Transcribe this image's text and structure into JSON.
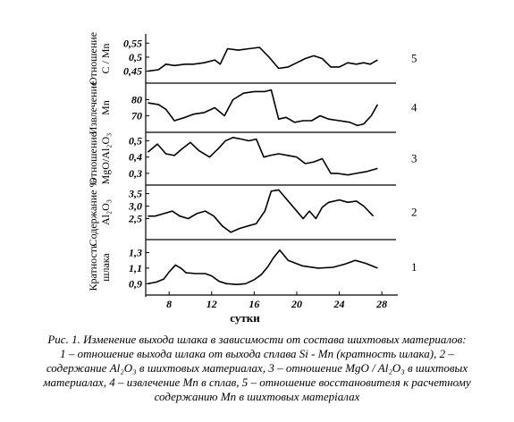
{
  "chart_data": {
    "type": "line",
    "x_axis": {
      "label": "сутки",
      "range": [
        5.8,
        29.5
      ],
      "ticks": [
        8,
        12,
        16,
        20,
        24,
        28
      ],
      "tick_labels": [
        "8",
        "12",
        "16",
        "20",
        "24",
        "28"
      ]
    },
    "panels": [
      {
        "number": "5",
        "ylabel_lines": [
          "Отношение",
          "C / Mn"
        ],
        "ylim": [
          0.42,
          0.57
        ],
        "ticks": [
          0.45,
          0.5,
          0.55
        ],
        "tick_labels": [
          "0,45",
          "0,5",
          "0,55"
        ],
        "x": [
          6,
          7,
          7.7,
          8.5,
          9.5,
          10.3,
          11.3,
          12.3,
          12.8,
          13.5,
          14.5,
          15.5,
          16.5,
          17.4,
          18.3,
          19.2,
          20,
          20.8,
          21.6,
          22.4,
          23.2,
          24,
          24.8,
          25.6,
          26.3,
          26.9,
          27.6
        ],
        "y": [
          0.45,
          0.455,
          0.475,
          0.47,
          0.475,
          0.475,
          0.48,
          0.49,
          0.475,
          0.53,
          0.525,
          0.53,
          0.535,
          0.5,
          0.46,
          0.465,
          0.48,
          0.495,
          0.505,
          0.495,
          0.465,
          0.465,
          0.48,
          0.475,
          0.48,
          0.475,
          0.49
        ]
      },
      {
        "number": "4",
        "ylabel_lines": [
          "Извлечение",
          "Mn"
        ],
        "ylim": [
          62,
          88
        ],
        "ticks": [
          70,
          80
        ],
        "tick_labels": [
          "70",
          "80"
        ],
        "x": [
          6,
          7,
          7.7,
          8.5,
          9.5,
          10.3,
          11.3,
          12.3,
          13.2,
          14,
          15,
          16,
          17,
          17.6,
          18.3,
          19,
          19.8,
          20.6,
          21.4,
          22.2,
          23,
          24,
          25,
          25.7,
          26.3,
          27,
          27.6
        ],
        "y": [
          78,
          77,
          74,
          67,
          69,
          71,
          72,
          75,
          70,
          80,
          84,
          85,
          85,
          86,
          68,
          69,
          66,
          67,
          67,
          70,
          68,
          67,
          66,
          64,
          65,
          70,
          77
        ]
      },
      {
        "number": "3",
        "ylabel_lines": [
          "Отношение",
          "MgO/Al₂O₃"
        ],
        "ylim": [
          0.25,
          0.53
        ],
        "ticks": [
          0.3,
          0.4,
          0.5
        ],
        "tick_labels": [
          "0,3",
          "0,4",
          "0,5"
        ],
        "x": [
          6,
          6.9,
          7.7,
          8.5,
          9.2,
          10,
          10.8,
          11.8,
          12.6,
          13.3,
          14,
          14.8,
          15.5,
          16.2,
          16.9,
          17.5,
          18.3,
          19.2,
          20,
          20.8,
          21.6,
          22.4,
          23.2,
          23.8,
          24.8,
          25.6,
          26.5,
          27.6
        ],
        "y": [
          0.43,
          0.48,
          0.42,
          0.41,
          0.45,
          0.49,
          0.44,
          0.4,
          0.45,
          0.5,
          0.52,
          0.51,
          0.5,
          0.51,
          0.4,
          0.41,
          0.42,
          0.41,
          0.4,
          0.36,
          0.37,
          0.39,
          0.3,
          0.3,
          0.29,
          0.3,
          0.31,
          0.33
        ]
      },
      {
        "number": "2",
        "ylabel_lines": [
          "Содержание %",
          "Al₂O₃"
        ],
        "ylim": [
          1.8,
          3.7
        ],
        "ticks": [
          2.5,
          3.0,
          3.5
        ],
        "tick_labels": [
          "2,5",
          "3,0",
          "3,5"
        ],
        "x": [
          6,
          6.7,
          7.5,
          8.3,
          9,
          9.8,
          10.6,
          11.4,
          12.2,
          13,
          13.8,
          14.6,
          15.4,
          16.2,
          17,
          17.6,
          18.3,
          19,
          19.8,
          20.6,
          21.2,
          21.8,
          22.4,
          23,
          24,
          24.8,
          25.6,
          26.3,
          27.2
        ],
        "y": [
          2.6,
          2.6,
          2.7,
          2.8,
          2.6,
          2.5,
          2.7,
          2.8,
          2.6,
          2.2,
          1.95,
          2.1,
          2.2,
          2.3,
          2.8,
          3.6,
          3.65,
          3.3,
          2.9,
          2.5,
          2.8,
          2.5,
          2.95,
          3.15,
          3.25,
          3.15,
          3.2,
          3.0,
          2.6
        ]
      },
      {
        "number": "1",
        "ylabel_lines": [
          "Кратность",
          "шлака"
        ],
        "ylim": [
          0.8,
          1.42
        ],
        "ticks": [
          0.9,
          1.1,
          1.3
        ],
        "tick_labels": [
          "0,9",
          "1,1",
          "1,3"
        ],
        "x": [
          6,
          6.8,
          7.5,
          8,
          8.6,
          9.1,
          9.6,
          10.5,
          11.4,
          12,
          12.7,
          13.4,
          14.4,
          15.2,
          16,
          16.7,
          17.3,
          17.8,
          18.4,
          19.2,
          20.5,
          22,
          23.4,
          24.5,
          25.5,
          26.5,
          27.6
        ],
        "y": [
          0.9,
          0.92,
          0.96,
          1.05,
          1.14,
          1.1,
          1.04,
          1.03,
          1.03,
          1.0,
          0.93,
          0.9,
          0.89,
          0.9,
          0.95,
          1.02,
          1.12,
          1.23,
          1.33,
          1.2,
          1.13,
          1.1,
          1.11,
          1.15,
          1.2,
          1.16,
          1.1
        ]
      }
    ]
  },
  "caption": {
    "line1": "Рис. 1. Изменение выхода шлака в зависимости от состава шихтовых материалов:",
    "line2": "1 – отношение выхода шлака от выхода сплава Si - Mn (кратность шлака), 2 –",
    "line3": "содержание Al₂O₃ в шихтовых материалах, 3 – отношение MgO / Al₂O₃ в шихтовых",
    "line4": "материалах,  4 – извлечение Mn в сплав, 5 – отношение восстановителя к расчетному",
    "line5": "содержанию Mn в шихтовых матеріалах"
  },
  "colors": {
    "line": "#000000",
    "background": "#ffffff"
  }
}
